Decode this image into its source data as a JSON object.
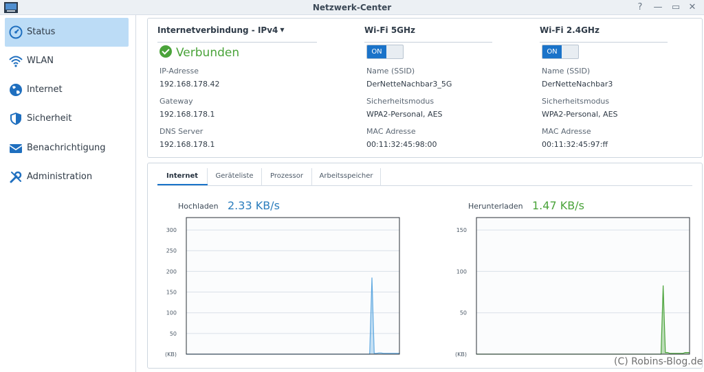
{
  "window": {
    "title": "Netzwerk-Center",
    "help": "?",
    "minimize": "—",
    "maximize": "▭",
    "close": "✕"
  },
  "sidebar": {
    "items": [
      {
        "label": "Status",
        "icon": "speedometer-icon",
        "active": true
      },
      {
        "label": "WLAN",
        "icon": "wifi-icon",
        "active": false
      },
      {
        "label": "Internet",
        "icon": "globe-icon",
        "active": false
      },
      {
        "label": "Sicherheit",
        "icon": "shield-icon",
        "active": false
      },
      {
        "label": "Benachrichtigung",
        "icon": "mail-icon",
        "active": false
      },
      {
        "label": "Administration",
        "icon": "wrench-icon",
        "active": false
      }
    ]
  },
  "status": {
    "internet": {
      "heading": "Internetverbindung - IPv4",
      "caret": "▼",
      "state": "Verbunden",
      "fields": [
        {
          "label": "IP-Adresse",
          "value": "192.168.178.42"
        },
        {
          "label": "Gateway",
          "value": "192.168.178.1"
        },
        {
          "label": "DNS Server",
          "value": "192.168.178.1"
        }
      ]
    },
    "wifi5": {
      "heading": "Wi-Fi 5GHz",
      "toggle": "ON",
      "fields": [
        {
          "label": "Name (SSID)",
          "value": "DerNetteNachbar3_5G"
        },
        {
          "label": "Sicherheitsmodus",
          "value": "WPA2-Personal, AES"
        },
        {
          "label": "MAC Adresse",
          "value": "00:11:32:45:98:00"
        }
      ]
    },
    "wifi24": {
      "heading": "Wi-Fi 2.4GHz",
      "toggle": "ON",
      "fields": [
        {
          "label": "Name (SSID)",
          "value": "DerNetteNachbar3"
        },
        {
          "label": "Sicherheitsmodus",
          "value": "WPA2-Personal, AES"
        },
        {
          "label": "MAC Adresse",
          "value": "00:11:32:45:97:ff"
        }
      ]
    }
  },
  "tabs": [
    "Internet",
    "Geräteliste",
    "Prozessor",
    "Arbeitsspeicher"
  ],
  "active_tab": "Internet",
  "upload": {
    "label": "Hochladen",
    "value": "2.33 KB/s",
    "color": "#2b7dbd"
  },
  "download": {
    "label": "Herunterladen",
    "value": "1.47 KB/s",
    "color": "#4aa33a"
  },
  "chart_data": [
    {
      "type": "area",
      "series": [
        {
          "color": "#5fa8e0",
          "values": [
            0,
            0,
            0,
            0,
            0,
            0,
            0,
            0,
            0,
            0,
            0,
            0,
            0,
            0,
            0,
            0,
            0,
            0,
            0,
            0,
            0,
            0,
            0,
            0,
            0,
            0,
            0,
            0,
            0,
            0,
            0,
            0,
            0,
            0,
            0,
            0,
            0,
            0,
            0,
            0,
            0,
            0,
            0,
            0,
            0,
            0,
            0,
            0,
            0,
            0,
            0,
            0,
            0,
            0,
            0,
            0,
            0,
            0,
            0,
            0,
            0,
            0,
            0,
            0,
            0,
            0,
            0,
            0,
            0,
            0,
            0,
            0,
            0,
            0,
            0,
            0,
            0,
            0,
            0,
            0,
            0,
            185,
            2,
            2,
            3,
            3,
            2,
            2,
            2,
            2,
            2,
            2,
            2,
            2
          ]
        }
      ],
      "yticks": [
        50,
        100,
        150,
        200,
        250,
        300
      ],
      "ytick_labels": [
        "50",
        "100",
        "150",
        "200",
        "250",
        "300"
      ],
      "unit_label": "(KB)",
      "ylim": [
        0,
        330
      ],
      "grid": true
    },
    {
      "type": "area",
      "series": [
        {
          "color": "#4aa33a",
          "values": [
            0,
            0,
            0,
            0,
            0,
            0,
            0,
            0,
            0,
            0,
            0,
            0,
            0,
            0,
            0,
            0,
            0,
            0,
            0,
            0,
            0,
            0,
            0,
            0,
            0,
            0,
            0,
            0,
            0,
            0,
            0,
            0,
            0,
            0,
            0,
            0,
            0,
            0,
            0,
            0,
            0,
            0,
            0,
            0,
            0,
            0,
            0,
            0,
            0,
            0,
            0,
            0,
            0,
            0,
            0,
            0,
            0,
            0,
            0,
            0,
            0,
            0,
            0,
            0,
            0,
            0,
            0,
            0,
            0,
            0,
            0,
            0,
            0,
            0,
            0,
            0,
            0,
            0,
            0,
            0,
            0,
            0,
            0,
            0,
            0,
            83,
            2,
            2,
            1,
            1,
            1,
            1,
            1,
            1,
            1,
            2,
            2,
            2
          ]
        }
      ],
      "yticks": [
        50,
        100,
        150
      ],
      "ytick_labels": [
        "50",
        "100",
        "150"
      ],
      "unit_label": "(KB)",
      "ylim": [
        0,
        165
      ],
      "grid": true
    }
  ],
  "watermark": "(C) Robins-Blog.de"
}
